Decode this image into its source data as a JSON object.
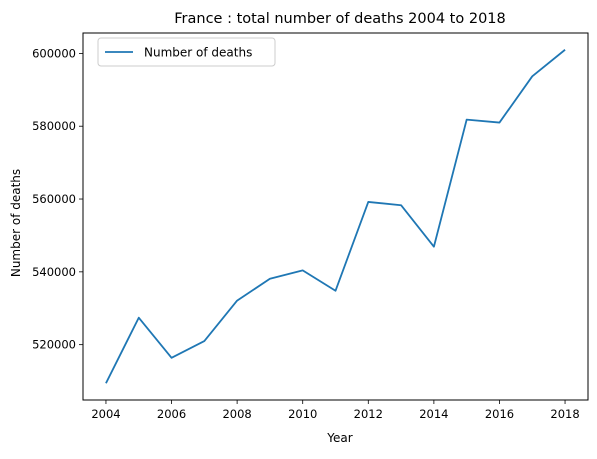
{
  "chart_data": {
    "type": "line",
    "title": "France : total number of deaths 2004 to 2018",
    "xlabel": "Year",
    "ylabel": "Number of deaths",
    "x": [
      2004,
      2005,
      2006,
      2007,
      2008,
      2009,
      2010,
      2011,
      2012,
      2013,
      2014,
      2015,
      2016,
      2017,
      2018
    ],
    "series": [
      {
        "name": "Number of deaths",
        "color": "#1f77b4",
        "values": [
          509400,
          527400,
          516400,
          521000,
          532100,
          538100,
          540400,
          534800,
          559200,
          558300,
          546900,
          581800,
          581000,
          593700,
          601000
        ]
      }
    ],
    "xlim": [
      2003.3,
      2018.7
    ],
    "ylim": [
      504800,
      605600
    ],
    "xticks": [
      2004,
      2006,
      2008,
      2010,
      2012,
      2014,
      2016,
      2018
    ],
    "yticks": [
      520000,
      540000,
      560000,
      580000,
      600000
    ],
    "legend_position": "top-left",
    "grid": false
  }
}
